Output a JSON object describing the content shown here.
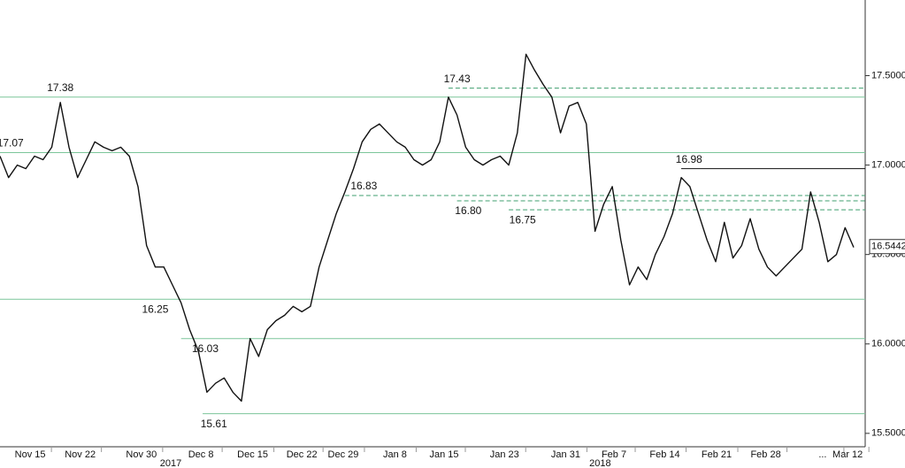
{
  "chart_data": {
    "type": "line",
    "series": [
      {
        "color": "#111111",
        "values": [
          17.05,
          16.93,
          17.0,
          16.98,
          17.05,
          17.03,
          17.1,
          17.35,
          17.1,
          16.93,
          17.03,
          17.13,
          17.1,
          17.08,
          17.1,
          17.05,
          16.88,
          16.55,
          16.43,
          16.43,
          16.33,
          16.23,
          16.08,
          15.96,
          15.73,
          15.78,
          15.81,
          15.73,
          15.68,
          16.03,
          15.93,
          16.08,
          16.13,
          16.16,
          16.21,
          16.18,
          16.21,
          16.43,
          16.58,
          16.73,
          16.85,
          16.98,
          17.13,
          17.2,
          17.23,
          17.18,
          17.13,
          17.1,
          17.03,
          17.0,
          17.03,
          17.13,
          17.38,
          17.28,
          17.1,
          17.03,
          17.0,
          17.03,
          17.05,
          17.0,
          17.18,
          17.62,
          17.53,
          17.45,
          17.38,
          17.18,
          17.33,
          17.35,
          17.23,
          16.63,
          16.78,
          16.88,
          16.58,
          16.33,
          16.43,
          16.36,
          16.5,
          16.6,
          16.73,
          16.93,
          16.88,
          16.73,
          16.58,
          16.46,
          16.68,
          16.48,
          16.55,
          16.7,
          16.53,
          16.43,
          16.38,
          16.43,
          16.48,
          16.53,
          16.85,
          16.68,
          16.46,
          16.5,
          16.65,
          16.54
        ]
      }
    ],
    "xlim": [
      0,
      99
    ],
    "xticks": [
      {
        "value": 3.5,
        "label": "Nov 15"
      },
      {
        "value": 9.3,
        "label": "Nov 22"
      },
      {
        "value": 16.4,
        "label": "Nov 30"
      },
      {
        "value": 23.3,
        "label": "Dec 8"
      },
      {
        "value": 29.3,
        "label": "Dec 15"
      },
      {
        "value": 35,
        "label": "Dec 22"
      },
      {
        "value": 39.8,
        "label": "Dec 29"
      },
      {
        "value": 45.8,
        "label": "Jan 8"
      },
      {
        "value": 51.5,
        "label": "Jan 15"
      },
      {
        "value": 58.5,
        "label": "Jan 23"
      },
      {
        "value": 65.6,
        "label": "Jan 31"
      },
      {
        "value": 71.2,
        "label": "Feb 7"
      },
      {
        "value": 77.1,
        "label": "Feb 14"
      },
      {
        "value": 83.1,
        "label": "Feb 21"
      },
      {
        "value": 88.8,
        "label": "Feb 28"
      },
      {
        "value": 95.4,
        "label": "..."
      },
      {
        "value": 98.3,
        "label": "Mar 12"
      }
    ],
    "years": [
      {
        "value": 19.8,
        "label": "2017"
      },
      {
        "value": 69.6,
        "label": "2018"
      }
    ],
    "ylim": [
      15.425,
      17.923
    ],
    "yticks": [
      {
        "value": 15.5,
        "label": "15.5000"
      },
      {
        "value": 16,
        "label": "16.0000"
      },
      {
        "value": 16.5,
        "label": "16.5000"
      },
      {
        "value": 17,
        "label": "17.0000"
      },
      {
        "value": 17.5,
        "label": "17.5000"
      }
    ],
    "levels": [
      {
        "value": 17.38,
        "label": "17.38",
        "style": "solid",
        "color": "#7cc59a",
        "from": 0,
        "at": 7,
        "side": "above"
      },
      {
        "value": 17.07,
        "label": "17.07",
        "style": "solid",
        "color": "#7cc59a",
        "from": 0,
        "at": 1.2,
        "side": "above"
      },
      {
        "value": 16.25,
        "label": "16.25",
        "style": "solid",
        "color": "#7cc59a",
        "from": 0,
        "at": 18,
        "side": "below"
      },
      {
        "value": 16.03,
        "label": "16.03",
        "style": "solid",
        "color": "#7cc59a",
        "from": 21,
        "at": 23.8,
        "side": "below"
      },
      {
        "value": 15.61,
        "label": "15.61",
        "style": "solid",
        "color": "#7cc59a",
        "from": 23.5,
        "at": 24.8,
        "side": "below"
      },
      {
        "value": 17.43,
        "label": "17.43",
        "style": "dashed",
        "color": "#3f9f6f",
        "from": 52,
        "at": 53,
        "side": "above"
      },
      {
        "value": 16.83,
        "label": "16.83",
        "style": "dashed",
        "color": "#3f9f6f",
        "from": 40,
        "at": 42.2,
        "side": "above"
      },
      {
        "value": 16.8,
        "label": "16.80",
        "style": "dashed",
        "color": "#3f9f6f",
        "from": 53,
        "at": 54.3,
        "side": "below"
      },
      {
        "value": 16.75,
        "label": "16.75",
        "style": "dashed",
        "color": "#3f9f6f",
        "from": 59,
        "at": 60.6,
        "side": "below"
      },
      {
        "value": 16.98,
        "label": "16.98",
        "style": "solid",
        "color": "#111111",
        "from": 79,
        "at": 79.9,
        "side": "above"
      }
    ],
    "last": {
      "value": 16.5442,
      "label": "16.5442"
    }
  }
}
